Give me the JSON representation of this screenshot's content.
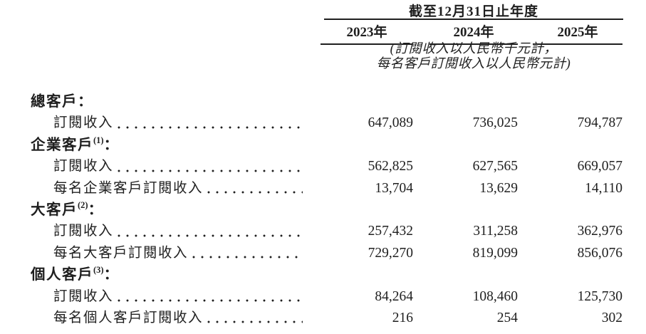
{
  "table": {
    "period_header": "截至12月31日止年度",
    "years": [
      "2023年",
      "2024年",
      "2025年"
    ],
    "unit_note_line1": "(訂閱收入以人民幣千元計，",
    "unit_note_line2": "每名客戶訂閱收入以人民幣元計)",
    "rows": [
      {
        "type": "group",
        "label": "總客戶",
        "sup": "",
        "colon": "："
      },
      {
        "type": "data",
        "label": "訂閱收入",
        "values": [
          "647,089",
          "736,025",
          "794,787"
        ]
      },
      {
        "type": "group",
        "label": "企業客戶",
        "sup": "(1)",
        "colon": "："
      },
      {
        "type": "data",
        "label": "訂閱收入",
        "values": [
          "562,825",
          "627,565",
          "669,057"
        ]
      },
      {
        "type": "data",
        "label": "每名企業客戶訂閱收入",
        "values": [
          "13,704",
          "13,629",
          "14,110"
        ]
      },
      {
        "type": "group",
        "label": "大客戶",
        "sup": "(2)",
        "colon": "："
      },
      {
        "type": "data",
        "label": "訂閱收入",
        "values": [
          "257,432",
          "311,258",
          "362,976"
        ]
      },
      {
        "type": "data",
        "label": "每名大客戶訂閱收入",
        "values": [
          "729,270",
          "819,099",
          "856,076"
        ]
      },
      {
        "type": "group",
        "label": "個人客戶",
        "sup": "(3)",
        "colon": "："
      },
      {
        "type": "data",
        "label": "訂閱收入",
        "values": [
          "84,264",
          "108,460",
          "125,730"
        ]
      },
      {
        "type": "data",
        "label": "每名個人客戶訂閱收入",
        "values": [
          "216",
          "254",
          "302"
        ]
      }
    ]
  }
}
